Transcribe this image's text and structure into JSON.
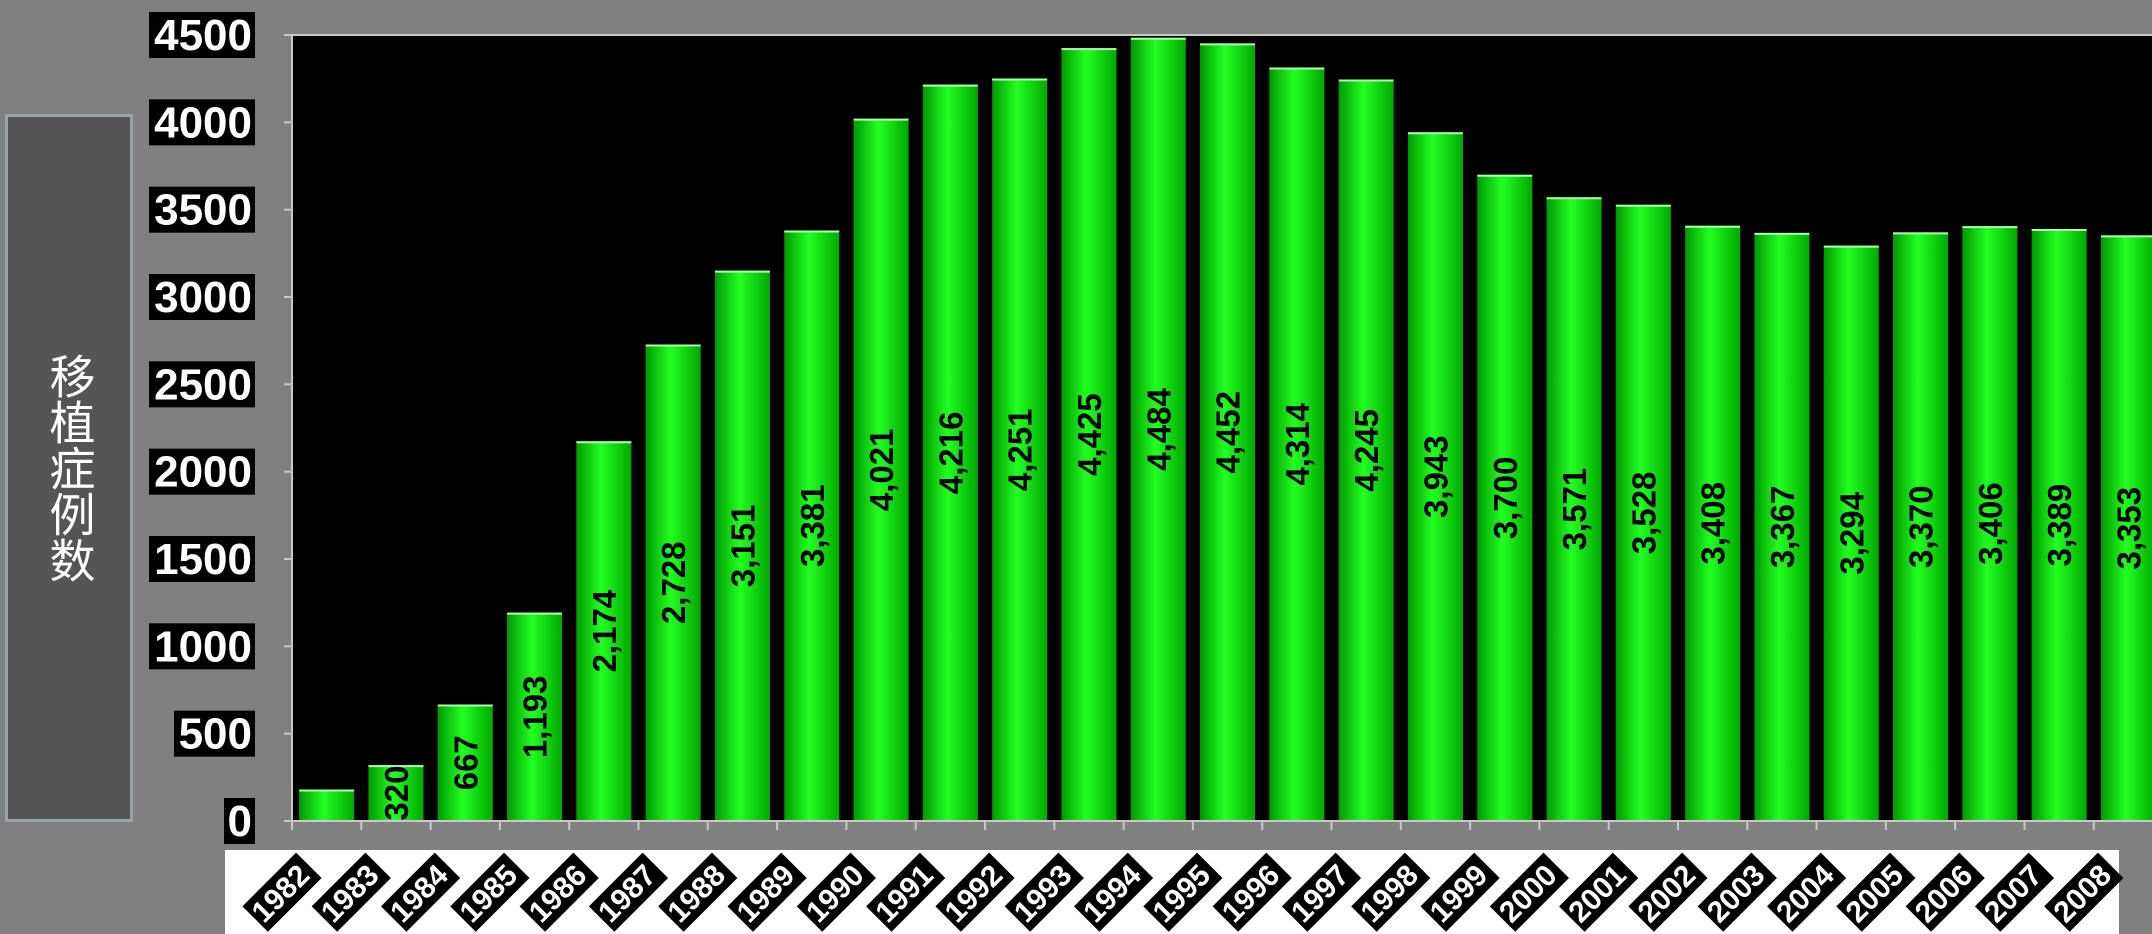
{
  "chart_data": {
    "type": "bar",
    "title": "",
    "ylabel": "移植症例数",
    "xlabel": "",
    "ylim": [
      0,
      4500
    ],
    "yticks": [
      "0",
      "500",
      "1000",
      "1500",
      "2000",
      "2500",
      "3000",
      "3500",
      "4000",
      "4500"
    ],
    "grid": false,
    "colors": {
      "bar": "#00ee00",
      "plot_background": "#000000",
      "figure_background": "#808080"
    },
    "categories": [
      "1982",
      "1983",
      "1984",
      "1985",
      "1986",
      "1987",
      "1988",
      "1989",
      "1990",
      "1991",
      "1992",
      "1993",
      "1994",
      "1995",
      "1996",
      "1997",
      "1998",
      "1999",
      "2000",
      "2001",
      "2002",
      "2003",
      "2004",
      "2005",
      "2006",
      "2007",
      "2008"
    ],
    "values": [
      180,
      320,
      667,
      1193,
      2174,
      2728,
      3151,
      3381,
      4021,
      4216,
      4251,
      4425,
      4484,
      4452,
      4314,
      4245,
      3943,
      3700,
      3571,
      3528,
      3408,
      3367,
      3294,
      3370,
      3406,
      3389,
      3353
    ],
    "value_labels": [
      "",
      "320",
      "667",
      "1,193",
      "2,174",
      "2,728",
      "3,151",
      "3,381",
      "4,021",
      "4,216",
      "4,251",
      "4,425",
      "4,484",
      "4,452",
      "4,314",
      "4,245",
      "3,943",
      "3,700",
      "3,571",
      "3,528",
      "3,408",
      "3,367",
      "3,294",
      "3,370",
      "3,406",
      "3,389",
      "3,353"
    ]
  }
}
